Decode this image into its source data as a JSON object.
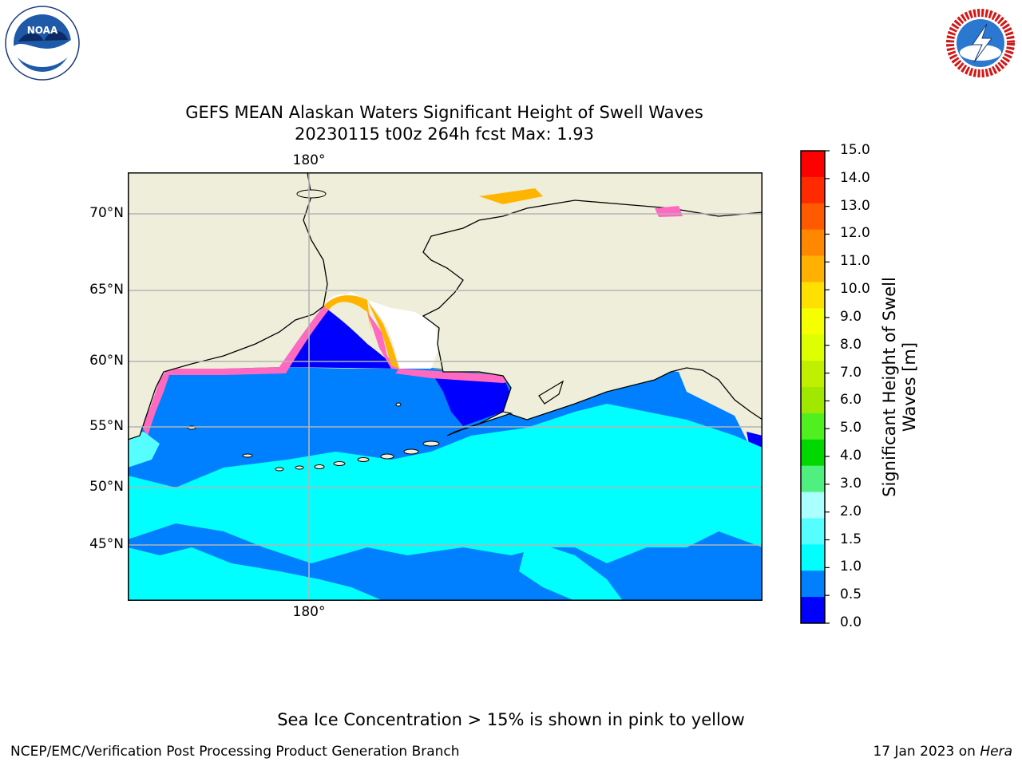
{
  "title": {
    "line1": "GEFS MEAN Alaskan Waters Significant Height of Swell Waves",
    "line2": "20230115 t00z 264h fcst   Max: 1.93"
  },
  "map": {
    "lon_label_top": "180°",
    "lon_label_bottom": "180°",
    "lat_labels": [
      "70°N",
      "65°N",
      "60°N",
      "55°N",
      "50°N",
      "45°N"
    ],
    "colors": {
      "land": "#efeedb",
      "ice_free_cell": "#ffffff",
      "ice_pink": "#ff69c0",
      "ice_orange": "#ffb400",
      "ice_yellow": "#ffe600"
    }
  },
  "colorbar": {
    "label": "Significant Height of Swell Waves [m]",
    "ticks": [
      "15.0",
      "14.0",
      "13.0",
      "12.0",
      "11.0",
      "10.0",
      "9.0",
      "8.0",
      "7.0",
      "6.0",
      "5.0",
      "4.0",
      "3.0",
      "2.0",
      "1.5",
      "1.0",
      "0.5",
      "0.0"
    ],
    "bands_top_to_bottom": [
      "#ff0000",
      "#ff2a00",
      "#ff5a00",
      "#ff8800",
      "#ffb000",
      "#ffe000",
      "#f5ff00",
      "#ddff00",
      "#c0f000",
      "#a0e800",
      "#50f020",
      "#00d800",
      "#50f080",
      "#aaffff",
      "#55ffff",
      "#00ffff",
      "#0080ff",
      "#0000ff"
    ]
  },
  "ice_note": "Sea Ice Concentration > 15% is shown in pink to yellow",
  "footer": {
    "left": "NCEP/EMC/Verification Post Processing Product Generation Branch",
    "right_prefix": "17 Jan 2023 on ",
    "right_host": "Hera"
  },
  "logos": {
    "noaa_label": "NOAA",
    "noaa_icon": "noaa-logo-icon",
    "nws_icon": "nws-logo-icon"
  }
}
